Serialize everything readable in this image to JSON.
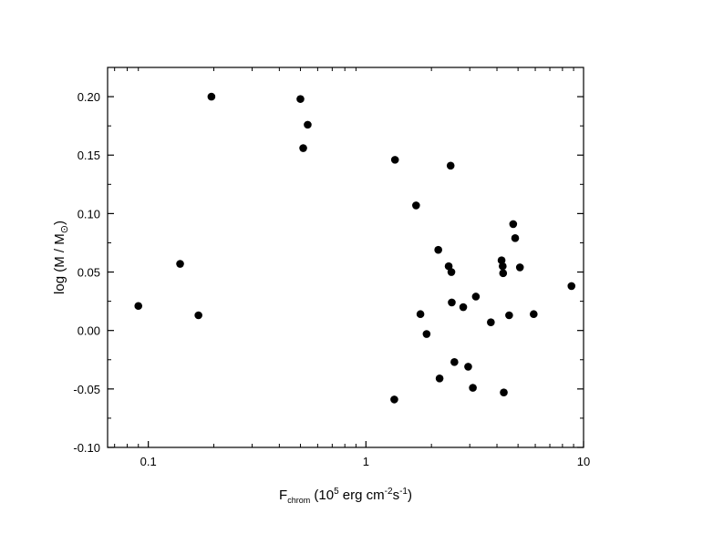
{
  "chart_data": {
    "type": "scatter",
    "title": "",
    "xlabel": {
      "main": "F",
      "sub": "chrom",
      "unit_open": " (10",
      "unit_exp": "5",
      "unit_mid": " erg cm",
      "unit_exp2": "-2",
      "unit_s": "s",
      "unit_exp3": "-1",
      "unit_close": ")"
    },
    "ylabel": {
      "main": "log (M / M",
      "sub": "⊙",
      "close": ")"
    },
    "x_scale": "log",
    "xlim": [
      0.065,
      10
    ],
    "ylim": [
      -0.1,
      0.225
    ],
    "x_ticks": [
      {
        "value": 0.1,
        "label": "0.1"
      },
      {
        "value": 1,
        "label": "1"
      },
      {
        "value": 10,
        "label": "10"
      }
    ],
    "y_ticks": [
      {
        "value": -0.1,
        "label": "-0.10"
      },
      {
        "value": -0.05,
        "label": "-0.05"
      },
      {
        "value": 0.0,
        "label": "0.00"
      },
      {
        "value": 0.05,
        "label": "0.05"
      },
      {
        "value": 0.1,
        "label": "0.10"
      },
      {
        "value": 0.15,
        "label": "0.15"
      },
      {
        "value": 0.2,
        "label": "0.20"
      }
    ],
    "grid": false,
    "legend": "none",
    "marker_color": "#000000",
    "points": [
      {
        "x": 0.09,
        "y": 0.021
      },
      {
        "x": 0.14,
        "y": 0.057
      },
      {
        "x": 0.17,
        "y": 0.013
      },
      {
        "x": 0.195,
        "y": 0.2
      },
      {
        "x": 0.5,
        "y": 0.198
      },
      {
        "x": 0.515,
        "y": 0.156
      },
      {
        "x": 0.54,
        "y": 0.176
      },
      {
        "x": 1.35,
        "y": -0.059
      },
      {
        "x": 1.36,
        "y": 0.146
      },
      {
        "x": 1.7,
        "y": 0.107
      },
      {
        "x": 1.78,
        "y": 0.014
      },
      {
        "x": 1.9,
        "y": -0.003
      },
      {
        "x": 2.15,
        "y": 0.069
      },
      {
        "x": 2.18,
        "y": -0.041
      },
      {
        "x": 2.4,
        "y": 0.055
      },
      {
        "x": 2.45,
        "y": 0.141
      },
      {
        "x": 2.47,
        "y": 0.05
      },
      {
        "x": 2.48,
        "y": 0.024
      },
      {
        "x": 2.55,
        "y": -0.027
      },
      {
        "x": 2.8,
        "y": 0.02
      },
      {
        "x": 2.95,
        "y": -0.031
      },
      {
        "x": 3.1,
        "y": -0.049
      },
      {
        "x": 3.2,
        "y": 0.029
      },
      {
        "x": 3.75,
        "y": 0.007
      },
      {
        "x": 4.2,
        "y": 0.06
      },
      {
        "x": 4.25,
        "y": 0.055
      },
      {
        "x": 4.27,
        "y": 0.049
      },
      {
        "x": 4.3,
        "y": -0.053
      },
      {
        "x": 4.55,
        "y": 0.013
      },
      {
        "x": 4.75,
        "y": 0.091
      },
      {
        "x": 4.85,
        "y": 0.079
      },
      {
        "x": 5.1,
        "y": 0.054
      },
      {
        "x": 5.9,
        "y": 0.014
      },
      {
        "x": 8.8,
        "y": 0.038
      }
    ]
  }
}
